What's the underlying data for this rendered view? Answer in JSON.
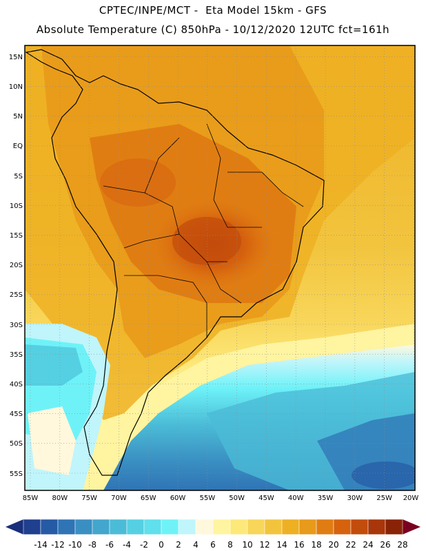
{
  "header": {
    "line1": "CPTEC/INPE/MCT -  Eta Model 15km - GFS",
    "line2": "Absolute Temperature (C) 850hPa - 10/12/2020 12UTC fct=161h"
  },
  "axes": {
    "lat_labels": [
      "15N",
      "10N",
      "5N",
      "EQ",
      "5S",
      "10S",
      "15S",
      "20S",
      "25S",
      "30S",
      "35S",
      "40S",
      "45S",
      "50S",
      "55S"
    ],
    "lon_labels": [
      "85W",
      "80W",
      "75W",
      "70W",
      "65W",
      "60W",
      "55W",
      "50W",
      "45W",
      "40W",
      "35W",
      "30W",
      "25W",
      "20W"
    ]
  },
  "colorbar": {
    "labels": [
      "-14",
      "-12",
      "-10",
      "-8",
      "-6",
      "-4",
      "-2",
      "0",
      "2",
      "4",
      "6",
      "8",
      "10",
      "12",
      "14",
      "16",
      "18",
      "20",
      "22",
      "24",
      "26",
      "28"
    ],
    "colors": [
      "#1f3f8f",
      "#255aa5",
      "#2f74b5",
      "#3a8fc2",
      "#43a6cc",
      "#4bbcd7",
      "#55d0e2",
      "#5fe0ec",
      "#6ef2f8",
      "#bff5fb",
      "#fff8dc",
      "#fff4a0",
      "#fde87a",
      "#f8d65a",
      "#f2c43e",
      "#eeb023",
      "#e89a1a",
      "#e07d12",
      "#d6620e",
      "#c24c0c",
      "#a8360a",
      "#8a2306"
    ],
    "low_end_color": "#1a2f7a",
    "high_end_color": "#7a0020"
  }
}
